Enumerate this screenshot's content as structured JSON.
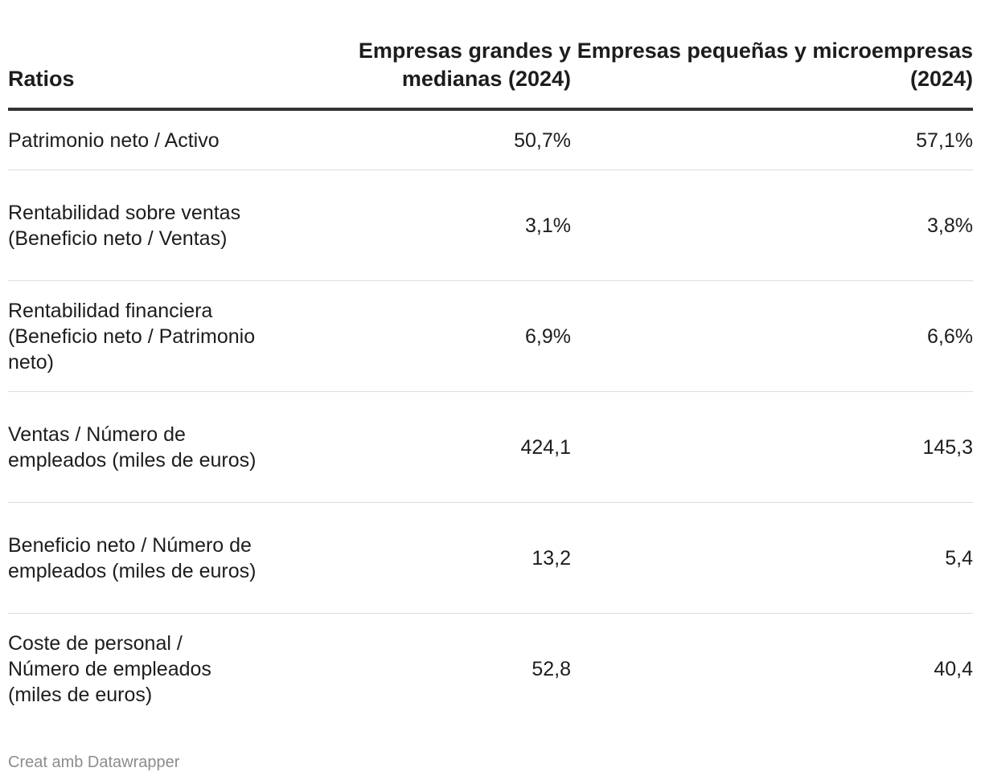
{
  "chart_data": {
    "type": "table",
    "columns": [
      "Ratios",
      "Empresas grandes y medianas (2024)",
      "Empresas pequeñas y microempresas (2024)"
    ],
    "rows": [
      {
        "label": "Patrimonio neto / Activo",
        "values": [
          "50,7%",
          "57,1%"
        ]
      },
      {
        "label": "Rentabilidad sobre ventas (Beneficio neto / Ventas)",
        "values": [
          "3,1%",
          "3,8%"
        ]
      },
      {
        "label": "Rentabilidad financiera (Beneficio neto / Patrimonio neto)",
        "values": [
          "6,9%",
          "6,6%"
        ]
      },
      {
        "label": "Ventas / Número de empleados (miles de euros)",
        "values": [
          "424,1",
          "145,3"
        ]
      },
      {
        "label": "Beneficio neto / Número de empleados (miles de euros)",
        "values": [
          "13,2",
          "5,4"
        ]
      },
      {
        "label": "Coste de personal / Número de empleados (miles de euros)",
        "values": [
          "52,8",
          "40,4"
        ]
      }
    ]
  },
  "footer": {
    "credit": "Creat amb Datawrapper"
  }
}
